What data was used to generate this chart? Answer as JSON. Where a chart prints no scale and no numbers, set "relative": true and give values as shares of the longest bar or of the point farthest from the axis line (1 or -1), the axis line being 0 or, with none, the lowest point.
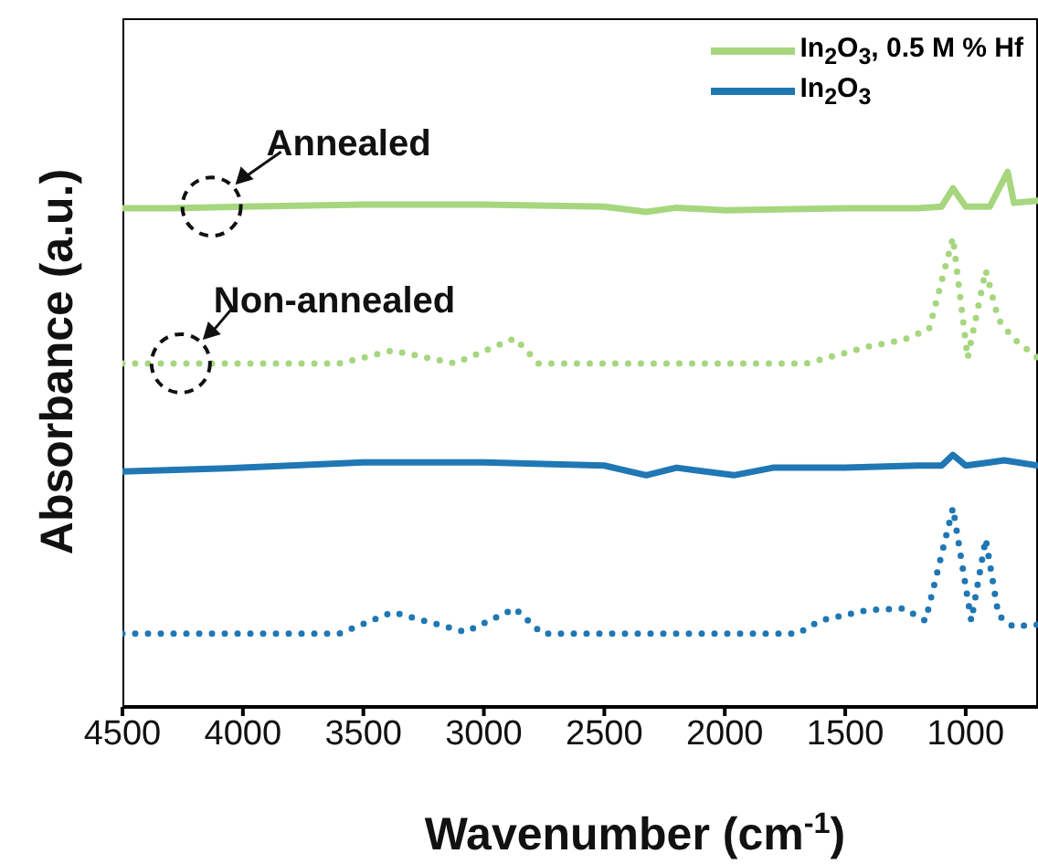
{
  "chart_data": {
    "type": "line",
    "relative": true,
    "xlabel": "Wavenumber (cm$^{-1}$)",
    "ylabel": "Absorbance (a.u.)",
    "xlim": [
      4500,
      700
    ],
    "xticks": [
      4500,
      4000,
      3500,
      3000,
      2500,
      2000,
      1500,
      1000
    ],
    "legend": "top right",
    "series": [
      {
        "name": "In$_{2}$O$_{3}$, 0.5 M % Hf",
        "color": "#a6d67e",
        "line_style": "solid",
        "x": [
          4500,
          4300,
          4000,
          3500,
          3000,
          2500,
          2326,
          2200,
          2000,
          1500,
          1200,
          1100,
          1053,
          1000,
          900,
          826,
          800,
          700
        ],
        "values": [
          0.932,
          0.932,
          0.935,
          0.939,
          0.939,
          0.935,
          0.925,
          0.933,
          0.928,
          0.932,
          0.932,
          0.935,
          0.969,
          0.935,
          0.935,
          1,
          0.942,
          0.946
        ]
      },
      {
        "name": "In$_{2}$O$_{3}$",
        "color": "#1f77b4",
        "line_style": "solid",
        "x": [
          4500,
          4000,
          3500,
          3000,
          2500,
          2326,
          2200,
          1962,
          1800,
          1500,
          1200,
          1100,
          1053,
          1000,
          900,
          841,
          700
        ],
        "values": [
          0.44,
          0.447,
          0.457,
          0.457,
          0.451,
          0.433,
          0.447,
          0.433,
          0.447,
          0.447,
          0.451,
          0.451,
          0.471,
          0.451,
          0.457,
          0.461,
          0.451
        ]
      },
      {
        "color": "#a6d67e",
        "line_style": "dotted",
        "x": [
          4500,
          4000,
          3600,
          3379,
          3121,
          2871,
          2773,
          2200,
          1659,
          1409,
          1258,
          1152,
          1053,
          992,
          917,
          864,
          803,
          700
        ],
        "values": [
          0.642,
          0.642,
          0.642,
          0.666,
          0.642,
          0.689,
          0.642,
          0.642,
          0.642,
          0.673,
          0.686,
          0.706,
          0.877,
          0.652,
          0.816,
          0.724,
          0.689,
          0.652
        ]
      },
      {
        "color": "#1f77b4",
        "line_style": "dotted",
        "x": [
          4500,
          4000,
          3600,
          3379,
          3076,
          2871,
          2758,
          2200,
          1697,
          1606,
          1409,
          1258,
          1167,
          1053,
          977,
          917,
          864,
          803,
          700
        ],
        "values": [
          0.137,
          0.137,
          0.137,
          0.177,
          0.14,
          0.184,
          0.137,
          0.137,
          0.137,
          0.161,
          0.181,
          0.184,
          0.161,
          0.372,
          0.161,
          0.314,
          0.171,
          0.15,
          0.154
        ]
      }
    ],
    "annotations": [
      {
        "text": "Annealed",
        "x": 4130,
        "y": 0.935
      },
      {
        "text": "Non-annealed",
        "x": 4258,
        "y": 0.642
      }
    ]
  }
}
